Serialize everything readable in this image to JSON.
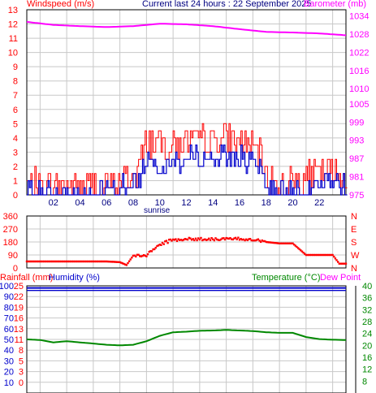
{
  "header": {
    "left_label": "Windspeed (m/s)",
    "center_label": "Current last 24 hours : 22 September 2025",
    "right_label": "Barometer (mb)"
  },
  "colors": {
    "wind_speed": "#ff0000",
    "wind_avg": "#0000cc",
    "barometer": "#ff00ff",
    "wind_dir": "#ff0000",
    "humidity": "#0000cc",
    "temperature": "#008800",
    "dew_point": "#ff00ff",
    "rainfall": "#ff0000",
    "grid": "#c8c8c8"
  },
  "sunrise_label": "sunrise",
  "chart_data": [
    {
      "type": "line",
      "title": "Windspeed (m/s) / Barometer (mb)",
      "xticks": [
        "02",
        "04",
        "06",
        "08",
        "10",
        "12",
        "14",
        "16",
        "18",
        "20",
        "22"
      ],
      "xlim": [
        0,
        24
      ],
      "y_left": {
        "label": "Windspeed (m/s)",
        "ticks": [
          0,
          1,
          2,
          3,
          4,
          5,
          6,
          7,
          8,
          9,
          10,
          11,
          12,
          13
        ],
        "range": [
          0,
          13
        ]
      },
      "y_right": {
        "label": "Barometer (mb)",
        "ticks": [
          975,
          981,
          987,
          993,
          999,
          1005,
          1010,
          1016,
          1022,
          1028,
          1034
        ],
        "range": [
          975,
          1036
        ]
      },
      "series": [
        {
          "name": "Windspeed",
          "axis": "left",
          "hours": [
            0,
            2,
            4,
            6,
            8,
            8.6,
            9,
            10,
            11,
            12,
            13,
            14,
            15,
            16,
            17,
            17.6,
            18,
            19,
            20,
            21,
            22,
            23,
            24
          ],
          "values": [
            0.7,
            0.6,
            0.6,
            0.7,
            1.2,
            2.5,
            3.8,
            3.5,
            3.6,
            3.7,
            3.8,
            3.8,
            3.9,
            3.8,
            3.2,
            2.6,
            1.2,
            0.9,
            0.9,
            1.2,
            1.5,
            1.6,
            0.8
          ]
        },
        {
          "name": "Average",
          "axis": "left",
          "hours": [
            0,
            2,
            4,
            6,
            8,
            8.6,
            9,
            10,
            11,
            12,
            13,
            14,
            15,
            16,
            17,
            17.6,
            18,
            19,
            20,
            21,
            22,
            23,
            24
          ],
          "values": [
            0.4,
            0.3,
            0.3,
            0.4,
            0.8,
            1.5,
            2.5,
            2.3,
            2.4,
            2.5,
            2.6,
            2.6,
            2.7,
            2.6,
            2.1,
            1.6,
            0.7,
            0.5,
            0.5,
            0.7,
            1.0,
            1.1,
            0.5
          ]
        },
        {
          "name": "Barometer",
          "axis": "right",
          "hours": [
            0,
            2,
            4,
            6,
            8,
            10,
            12,
            14,
            16,
            18,
            20,
            22,
            24
          ],
          "values": [
            1032,
            1031,
            1030.6,
            1030.3,
            1030.6,
            1031.4,
            1031.2,
            1030.6,
            1029.6,
            1028.7,
            1028.5,
            1028.2,
            1027.6
          ]
        }
      ]
    },
    {
      "type": "scatter",
      "title": "Wind direction",
      "xlim": [
        0,
        24
      ],
      "y_left": {
        "ticks": [
          0,
          90,
          180,
          270,
          360
        ],
        "range": [
          0,
          360
        ]
      },
      "y_right": {
        "ticks": [
          "N",
          "W",
          "S",
          "E",
          "N"
        ]
      },
      "series": [
        {
          "name": "Direction",
          "hours": [
            0,
            2,
            4,
            6,
            7,
            7.5,
            8,
            9,
            9.5,
            10,
            10.5,
            11,
            12,
            13,
            14,
            15,
            16,
            17,
            18,
            19,
            20,
            21,
            22,
            23,
            23.5
          ],
          "values": [
            45,
            45,
            45,
            45,
            40,
            20,
            85,
            85,
            130,
            160,
            180,
            195,
            200,
            200,
            200,
            200,
            200,
            200,
            180,
            170,
            170,
            90,
            90,
            90,
            30
          ]
        }
      ]
    },
    {
      "type": "line",
      "title": "Rainfall / Humidity / Temperature / Dew Point",
      "xlim": [
        0,
        24
      ],
      "legend_left": [
        "Rainfall (mm)",
        "Humidity (%)"
      ],
      "legend_right": [
        "Temperature (°C)",
        "Dew Point"
      ],
      "y_humidity": {
        "ticks": [
          100,
          90,
          80,
          70,
          60,
          50,
          40,
          30,
          20,
          10
        ],
        "range": [
          0,
          100
        ]
      },
      "y_rain": {
        "ticks": [
          25,
          22,
          19,
          16,
          13,
          11,
          8,
          5,
          3,
          0
        ],
        "range": [
          0,
          25
        ]
      },
      "y_temp": {
        "ticks": [
          40,
          36,
          32,
          28,
          24,
          20,
          16,
          12,
          8
        ],
        "range": [
          4,
          40
        ]
      },
      "series": [
        {
          "name": "Humidity",
          "hours": [
            0,
            24
          ],
          "values": [
            98,
            98
          ]
        },
        {
          "name": "Temperature",
          "hours": [
            0,
            1,
            2,
            3,
            4,
            5,
            6,
            7,
            8,
            9,
            10,
            11,
            12,
            13,
            14,
            15,
            16,
            17,
            18,
            19,
            20,
            21,
            22,
            23,
            24
          ],
          "values": [
            22,
            21.8,
            21,
            21.4,
            21,
            20.6,
            20.2,
            20,
            20.2,
            21.4,
            23.2,
            24.4,
            24.6,
            24.9,
            25,
            25.2,
            25,
            24.8,
            24.4,
            24.2,
            24.2,
            22.8,
            22.1,
            21.9,
            21.8
          ]
        }
      ]
    }
  ]
}
